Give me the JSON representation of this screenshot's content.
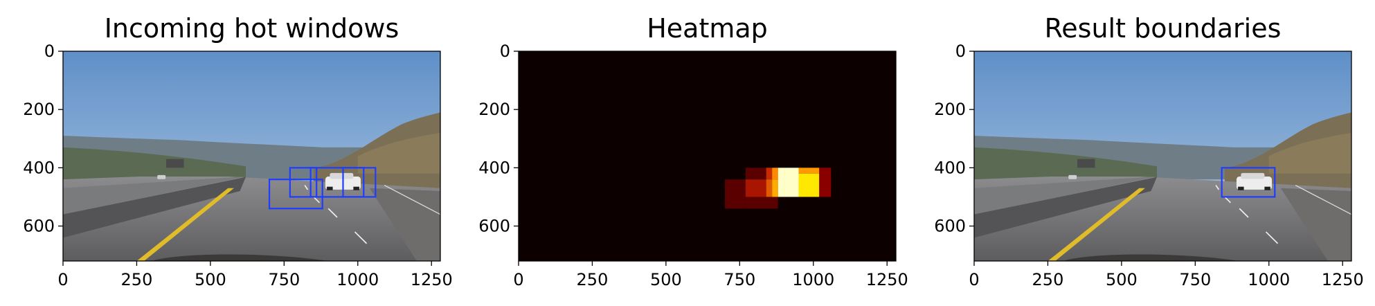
{
  "chart_data": [
    {
      "type": "image",
      "title": "Incoming hot windows",
      "xlim": [
        0,
        1280
      ],
      "ylim": [
        720,
        0
      ],
      "xticks": [
        0,
        250,
        500,
        750,
        1000,
        1250
      ],
      "yticks": [
        0,
        200,
        400,
        600
      ],
      "box_color": "#1f3cff",
      "boxes": [
        {
          "x0": 700,
          "y0": 440,
          "x1": 880,
          "y1": 540
        },
        {
          "x0": 770,
          "y0": 400,
          "x1": 860,
          "y1": 500
        },
        {
          "x0": 840,
          "y0": 400,
          "x1": 1020,
          "y1": 500
        },
        {
          "x0": 950,
          "y0": 400,
          "x1": 1060,
          "y1": 500
        }
      ]
    },
    {
      "type": "heatmap",
      "title": "Heatmap",
      "xlim": [
        0,
        1280
      ],
      "ylim": [
        720,
        0
      ],
      "xticks": [
        0,
        250,
        500,
        750,
        1000,
        1250
      ],
      "yticks": [
        0,
        200,
        400,
        600
      ],
      "background": "#0d0000",
      "cells": [
        {
          "x0": 700,
          "y0": 440,
          "x1": 770,
          "y1": 540,
          "color": "#5a0000"
        },
        {
          "x0": 770,
          "y0": 500,
          "x1": 880,
          "y1": 540,
          "color": "#5a0000"
        },
        {
          "x0": 770,
          "y0": 400,
          "x1": 840,
          "y1": 440,
          "color": "#5a0000"
        },
        {
          "x0": 770,
          "y0": 440,
          "x1": 840,
          "y1": 500,
          "color": "#a81500"
        },
        {
          "x0": 840,
          "y0": 400,
          "x1": 860,
          "y1": 440,
          "color": "#c82a00"
        },
        {
          "x0": 840,
          "y0": 440,
          "x1": 860,
          "y1": 500,
          "color": "#e05a00"
        },
        {
          "x0": 860,
          "y0": 400,
          "x1": 880,
          "y1": 440,
          "color": "#ff8a00"
        },
        {
          "x0": 860,
          "y0": 440,
          "x1": 880,
          "y1": 500,
          "color": "#ffaa00"
        },
        {
          "x0": 880,
          "y0": 400,
          "x1": 950,
          "y1": 500,
          "color": "#fffdc8"
        },
        {
          "x0": 950,
          "y0": 400,
          "x1": 1020,
          "y1": 420,
          "color": "#ff9a00"
        },
        {
          "x0": 950,
          "y0": 420,
          "x1": 1020,
          "y1": 500,
          "color": "#ffe800"
        },
        {
          "x0": 1020,
          "y0": 400,
          "x1": 1060,
          "y1": 500,
          "color": "#8a0000"
        }
      ]
    },
    {
      "type": "image",
      "title": "Result boundaries",
      "xlim": [
        0,
        1280
      ],
      "ylim": [
        720,
        0
      ],
      "xticks": [
        0,
        250,
        500,
        750,
        1000,
        1250
      ],
      "yticks": [
        0,
        200,
        400,
        600
      ],
      "box_color": "#1f3cff",
      "boxes": [
        {
          "x0": 840,
          "y0": 400,
          "x1": 1020,
          "y1": 500
        }
      ]
    }
  ]
}
